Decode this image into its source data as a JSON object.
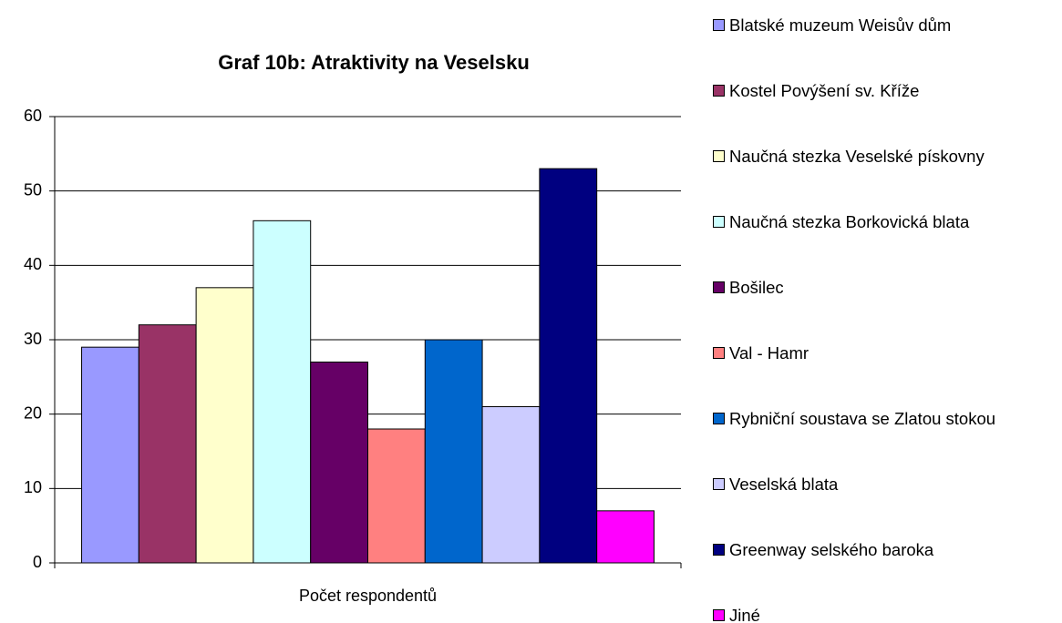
{
  "chart_data": {
    "type": "bar",
    "title": "Graf 10b: Atraktivity na Veselsku",
    "categories": [
      "Počet respondentů"
    ],
    "series": [
      {
        "name": "Blatské muzeum Weisův dům",
        "color": "#9999ff",
        "values": [
          29
        ]
      },
      {
        "name": "Kostel Povýšení sv. Kříže",
        "color": "#993366",
        "values": [
          32
        ]
      },
      {
        "name": "Naučná stezka Veselské pískovny",
        "color": "#ffffcc",
        "values": [
          37
        ]
      },
      {
        "name": "Naučná stezka Borkovická blata",
        "color": "#ccffff",
        "values": [
          46
        ]
      },
      {
        "name": "Bošilec",
        "color": "#660066",
        "values": [
          27
        ]
      },
      {
        "name": "Val - Hamr",
        "color": "#ff8080",
        "values": [
          18
        ]
      },
      {
        "name": "Rybniční soustava se Zlatou stokou",
        "color": "#0066cc",
        "values": [
          30
        ]
      },
      {
        "name": "Veselská blata",
        "color": "#ccccff",
        "values": [
          21
        ]
      },
      {
        "name": "Greenway selského baroka",
        "color": "#000080",
        "values": [
          53
        ]
      },
      {
        "name": "Jiné",
        "color": "#ff00ff",
        "values": [
          7
        ]
      }
    ],
    "ylim": [
      0,
      60
    ],
    "yticks": [
      0,
      10,
      20,
      30,
      40,
      50,
      60
    ],
    "grid": true,
    "legend": "right"
  }
}
